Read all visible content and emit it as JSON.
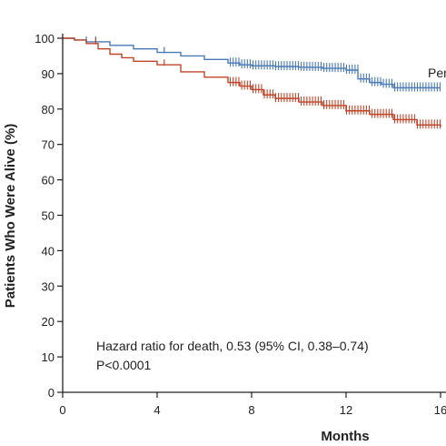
{
  "chart_data": {
    "type": "line",
    "title": "",
    "xlabel": "Months",
    "ylabel": "Patients Who Were Alive (%)",
    "xlim": [
      0,
      16
    ],
    "ylim": [
      0,
      100
    ],
    "x_ticks": [
      0,
      4,
      8,
      12,
      16
    ],
    "y_ticks": [
      0,
      10,
      20,
      30,
      40,
      50,
      60,
      70,
      80,
      90,
      100
    ],
    "x_tick_labels": [
      "0",
      "4",
      "8",
      "12",
      "16"
    ],
    "y_tick_labels": [
      "0",
      "10",
      "20",
      "30",
      "40",
      "50",
      "60",
      "70",
      "80",
      "90",
      "100"
    ],
    "grid": false,
    "colors": {
      "blue": "#4a7ab5",
      "red": "#c0452a",
      "axis": "#222222"
    },
    "series": [
      {
        "name": "Per",
        "color": "#4a7ab5",
        "x": [
          0,
          0.5,
          1,
          2,
          3,
          4,
          5,
          6,
          7,
          7.5,
          8,
          9,
          10,
          11,
          12,
          12.5,
          13,
          13.5,
          14,
          15,
          16
        ],
        "y": [
          100,
          99.5,
          99,
          98,
          97,
          96,
          95,
          94,
          93,
          92.5,
          92.2,
          92,
          91.8,
          91.5,
          91,
          88.5,
          87.5,
          87,
          86,
          86,
          86
        ]
      },
      {
        "name": "",
        "color": "#c0452a",
        "x": [
          0,
          0.5,
          1,
          1.5,
          2,
          2.5,
          3,
          4,
          5,
          6,
          7,
          7.5,
          8,
          8.5,
          9,
          10,
          11,
          12,
          13,
          14,
          15,
          16
        ],
        "y": [
          100,
          99.5,
          98.5,
          97,
          95.5,
          94.5,
          93.5,
          92.5,
          90.5,
          89,
          87.5,
          86.5,
          85.5,
          84,
          83,
          82,
          81,
          79.5,
          78.5,
          77,
          75.5,
          75
        ]
      }
    ],
    "annotations": [
      "Hazard ratio for death, 0.53 (95% CI, 0.38–0.74)",
      "P<0.0001"
    ]
  }
}
